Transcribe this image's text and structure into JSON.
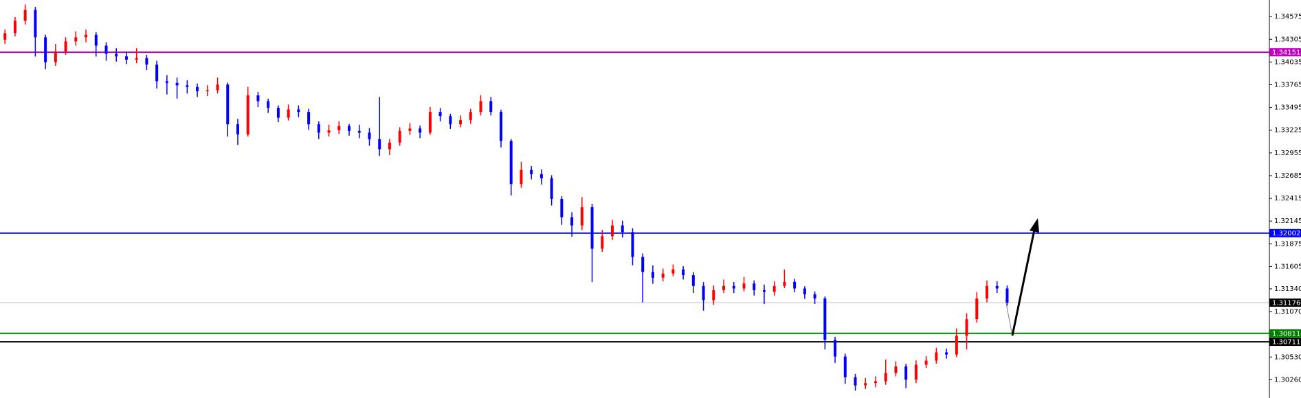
{
  "chart_data": {
    "type": "candlestick",
    "up_color": "#ff0000",
    "down_color": "#0000ff",
    "ylim": [
      1.30043,
      1.34772
    ],
    "yticks": [
      1.34575,
      1.34305,
      1.34035,
      1.33765,
      1.33495,
      1.33225,
      1.32955,
      1.32685,
      1.32415,
      1.32145,
      1.31875,
      1.31605,
      {
        "value": 1.3134,
        "label": "1.31340"
      },
      {
        "value": 1.3107,
        "label": "1.31070"
      },
      {
        "value": 1.3053,
        "label": "1.30530"
      },
      {
        "value": 1.3026,
        "label": "1.30260"
      }
    ],
    "levels": [
      {
        "value": 1.34151,
        "color": "#c000c0",
        "width": 2
      },
      {
        "value": 1.32002,
        "color": "#0000ff",
        "width": 2
      },
      {
        "value": 1.31176,
        "color": "#c0c0c0",
        "label_color": "#000000",
        "width": 1
      },
      {
        "value": 1.30811,
        "color": "#008000",
        "width": 2
      },
      {
        "value": 1.30711,
        "color": "#000000",
        "width": 2
      }
    ],
    "open": [
      1.343,
      1.34378,
      1.34526,
      1.34654,
      1.34329,
      1.34033,
      1.34161,
      1.3428,
      1.34329,
      1.34358,
      1.3423,
      1.34132,
      1.34102,
      1.34063,
      1.34082,
      1.34004,
      1.33807,
      1.33787,
      1.33758,
      1.33738,
      1.33689,
      1.337,
      1.33767,
      1.33295,
      1.33176,
      1.33639,
      1.3357,
      1.33491,
      1.33373,
      1.33472,
      1.33442,
      1.33295,
      1.33196,
      1.33225,
      1.33275,
      1.33216,
      1.33196,
      1.33117,
      1.32999,
      1.33078,
      1.33216,
      1.33245,
      1.33196,
      1.33442,
      1.33393,
      1.33295,
      1.33344,
      1.33442,
      1.3357,
      1.33442,
      1.33097,
      1.32585,
      1.32753,
      1.32703,
      1.32654,
      1.32408,
      1.32191,
      1.32093,
      1.3231,
      1.31817,
      1.31965,
      1.32093,
      1.32014,
      1.31719,
      1.31541,
      1.31472,
      1.31522,
      1.31571,
      1.31502,
      1.31374,
      1.31206,
      1.31325,
      1.31374,
      1.31344,
      1.31403,
      1.31325,
      1.31305,
      1.31374,
      1.31423,
      1.31344,
      1.31275,
      1.31226,
      1.30733,
      1.30536,
      1.3029,
      1.30192,
      1.30221,
      1.30241,
      1.30339,
      1.30418,
      1.30261,
      1.30438,
      1.30487,
      1.30585,
      1.3056,
      1.30782,
      1.30979,
      1.31226,
      1.31374,
      1.31344
    ],
    "high": [
      1.3442,
      1.3457,
      1.3472,
      1.3469,
      1.3436,
      1.3425,
      1.3433,
      1.344,
      1.3442,
      1.3439,
      1.3427,
      1.342,
      1.3416,
      1.342,
      1.3412,
      1.3405,
      1.3388,
      1.3385,
      1.3382,
      1.3378,
      1.3376,
      1.3385,
      1.3379,
      1.3336,
      1.3374,
      1.3368,
      1.336,
      1.3352,
      1.3353,
      1.3352,
      1.3348,
      1.3333,
      1.3329,
      1.3333,
      1.333,
      1.3329,
      1.3325,
      1.3362,
      1.3312,
      1.3326,
      1.3331,
      1.3328,
      1.335,
      1.3349,
      1.3342,
      1.334,
      1.3348,
      1.3364,
      1.3362,
      1.3347,
      1.3312,
      1.3285,
      1.328,
      1.3276,
      1.3269,
      1.3244,
      1.3225,
      1.3243,
      1.3235,
      1.3204,
      1.3216,
      1.3215,
      1.3206,
      1.3176,
      1.3162,
      1.3158,
      1.3163,
      1.3161,
      1.3154,
      1.3142,
      1.3138,
      1.3145,
      1.3142,
      1.3148,
      1.3144,
      1.3139,
      1.3143,
      1.3157,
      1.3146,
      1.3137,
      1.3131,
      1.3125,
      1.3077,
      1.3057,
      1.3033,
      1.3028,
      1.303,
      1.305,
      1.3048,
      1.3045,
      1.3049,
      1.3054,
      1.3064,
      1.3063,
      1.3087,
      1.3105,
      1.313,
      1.3144,
      1.3143,
      1.3138
    ],
    "low": [
      1.3425,
      1.3434,
      1.3448,
      1.341,
      1.3395,
      1.3399,
      1.3412,
      1.3423,
      1.3427,
      1.341,
      1.3405,
      1.3404,
      1.3401,
      1.3402,
      1.3394,
      1.3372,
      1.3365,
      1.336,
      1.3366,
      1.3362,
      1.3363,
      1.3366,
      1.3315,
      1.3305,
      1.3315,
      1.335,
      1.3343,
      1.3332,
      1.3334,
      1.3338,
      1.3323,
      1.3312,
      1.3315,
      1.3318,
      1.3316,
      1.3313,
      1.3304,
      1.3292,
      1.3293,
      1.3304,
      1.3317,
      1.3313,
      1.3317,
      1.3333,
      1.3324,
      1.3326,
      1.333,
      1.334,
      1.334,
      1.3302,
      1.3245,
      1.3254,
      1.3264,
      1.3258,
      1.3233,
      1.321,
      1.3196,
      1.3204,
      1.3142,
      1.3178,
      1.3192,
      1.3195,
      1.3162,
      1.3118,
      1.314,
      1.3143,
      1.3149,
      1.3145,
      1.3129,
      1.3108,
      1.3115,
      1.3129,
      1.3129,
      1.3131,
      1.3126,
      1.3116,
      1.3126,
      1.3135,
      1.313,
      1.3122,
      1.3116,
      1.3062,
      1.3046,
      1.3021,
      1.3013,
      1.3015,
      1.3017,
      1.302,
      1.303,
      1.3016,
      1.3022,
      1.304,
      1.3045,
      1.3051,
      1.3053,
      1.3062,
      1.3094,
      1.3118,
      1.3129,
      1.3114
    ],
    "close": [
      1.34378,
      1.34526,
      1.34654,
      1.34329,
      1.34033,
      1.34161,
      1.3428,
      1.34329,
      1.34358,
      1.3423,
      1.34132,
      1.34102,
      1.34063,
      1.34082,
      1.34004,
      1.33807,
      1.33787,
      1.33758,
      1.33738,
      1.33689,
      1.337,
      1.33767,
      1.33295,
      1.33176,
      1.33639,
      1.3357,
      1.33491,
      1.33373,
      1.33472,
      1.33442,
      1.33295,
      1.33196,
      1.33225,
      1.33275,
      1.33216,
      1.33196,
      1.33117,
      1.32999,
      1.33078,
      1.33216,
      1.33245,
      1.33196,
      1.33442,
      1.33393,
      1.33295,
      1.33344,
      1.33442,
      1.3357,
      1.33442,
      1.33097,
      1.32585,
      1.32753,
      1.32703,
      1.32654,
      1.32408,
      1.32191,
      1.32093,
      1.3231,
      1.31817,
      1.31965,
      1.32093,
      1.32014,
      1.31719,
      1.31541,
      1.31472,
      1.31522,
      1.31571,
      1.31502,
      1.31374,
      1.31206,
      1.31325,
      1.31374,
      1.31344,
      1.31403,
      1.31325,
      1.31305,
      1.31374,
      1.31423,
      1.31344,
      1.31275,
      1.31226,
      1.30733,
      1.30536,
      1.3029,
      1.30192,
      1.30221,
      1.30241,
      1.30339,
      1.30418,
      1.30261,
      1.30438,
      1.30487,
      1.30585,
      1.3056,
      1.30782,
      1.30979,
      1.31226,
      1.31374,
      1.31344,
      1.31176
    ]
  }
}
